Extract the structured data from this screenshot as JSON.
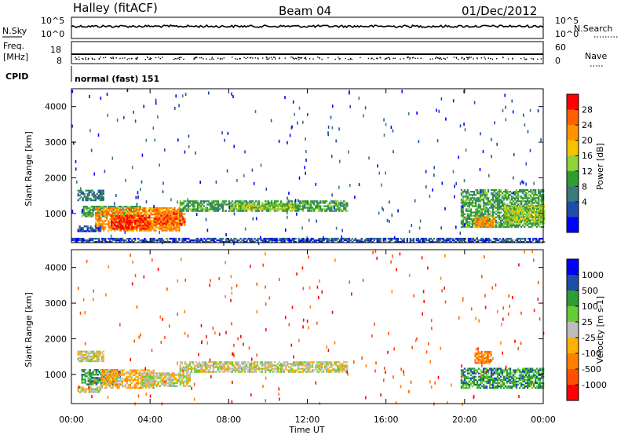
{
  "header": {
    "station": "Halley (fitACF)",
    "beam": "Beam 04",
    "date": "01/Dec/2012"
  },
  "panels": {
    "nsky_label": "N.Sky",
    "nsky_ticks": [
      "10^5",
      "10^0"
    ],
    "nsearch_label": "N.Search",
    "nsearch_ticks": [
      "10^5",
      "10^0"
    ],
    "freq_label_1": "Freq.",
    "freq_label_2": "[MHz]",
    "freq_ticks": [
      "18",
      "8"
    ],
    "nave_label": "Nave",
    "nave_ticks": [
      "60",
      "0"
    ],
    "cpid_label": "CPID",
    "cpid_text": "normal (fast) 151"
  },
  "chart_data": [
    {
      "type": "heatmap",
      "panel": "power",
      "ylabel": "Slant Range [km]",
      "xlabel": "Time UT",
      "ylim": [
        180,
        4500
      ],
      "y_ticks": [
        1000,
        2000,
        3000,
        4000
      ],
      "x_ticks": [
        "00:00",
        "04:00",
        "08:00",
        "12:00",
        "16:00",
        "20:00",
        "00:00"
      ],
      "x_hours": [
        0,
        4,
        8,
        12,
        16,
        20,
        24
      ],
      "colorbar_label": "Power [dB]",
      "colorbar_ticks": [
        "28",
        "24",
        "20",
        "16",
        "12",
        "8",
        "4"
      ],
      "colorbar_colors": [
        "#ff0000",
        "#ff6000",
        "#ff9400",
        "#f6c200",
        "#8fd23a",
        "#2e9e33",
        "#3b7a7a",
        "#1f4ea8",
        "#0000ff"
      ],
      "regions": [
        {
          "t0": 0.3,
          "t1": 1.6,
          "r0": 1350,
          "r1": 1650,
          "level": 2
        },
        {
          "t0": 0.5,
          "t1": 3.5,
          "r0": 900,
          "r1": 1200,
          "level": 3
        },
        {
          "t0": 1.2,
          "t1": 5.5,
          "r0": 500,
          "r1": 1150,
          "level": 6
        },
        {
          "t0": 2.0,
          "t1": 4.0,
          "r0": 550,
          "r1": 950,
          "level": 8
        },
        {
          "t0": 4.2,
          "t1": 5.8,
          "r0": 650,
          "r1": 1050,
          "level": 7
        },
        {
          "t0": 5.5,
          "t1": 14.0,
          "r0": 1050,
          "r1": 1350,
          "level": 3
        },
        {
          "t0": 8.0,
          "t1": 11.5,
          "r0": 1100,
          "r1": 1250,
          "level": 4
        },
        {
          "t0": 0.3,
          "t1": 1.5,
          "r0": 480,
          "r1": 620,
          "level": 1
        },
        {
          "t0": 19.8,
          "t1": 24.0,
          "r0": 600,
          "r1": 1650,
          "level": 3
        },
        {
          "t0": 20.5,
          "t1": 21.5,
          "r0": 600,
          "r1": 900,
          "level": 6
        },
        {
          "t0": 22.0,
          "t1": 24.0,
          "r0": 700,
          "r1": 1200,
          "level": 4
        },
        {
          "t0": 0.0,
          "t1": 24.0,
          "r0": 180,
          "r1": 300,
          "level": 1
        }
      ]
    },
    {
      "type": "heatmap",
      "panel": "velocity",
      "ylabel": "Slant Range [km]",
      "xlabel": "Time UT",
      "ylim": [
        180,
        4500
      ],
      "y_ticks": [
        1000,
        2000,
        3000,
        4000
      ],
      "x_ticks": [
        "00:00",
        "04:00",
        "08:00",
        "12:00",
        "16:00",
        "20:00",
        "00:00"
      ],
      "x_hours": [
        0,
        4,
        8,
        12,
        16,
        20,
        24
      ],
      "colorbar_label": "Velocity [m s-1]",
      "colorbar_ticks": [
        "1000",
        "500",
        "100",
        "25",
        "-25",
        "-100",
        "-500",
        "-1000"
      ],
      "colorbar_colors": [
        "#0000ff",
        "#1f4ea8",
        "#2e9e33",
        "#66cc33",
        "#bdbdbd",
        "#ffb000",
        "#ff8000",
        "#ff5000",
        "#ff0000"
      ],
      "regions": [
        {
          "t0": 0.3,
          "t1": 1.6,
          "r0": 1350,
          "r1": 1650,
          "level": 4
        },
        {
          "t0": 0.5,
          "t1": 2.5,
          "r0": 700,
          "r1": 1150,
          "level": 6
        },
        {
          "t0": 1.5,
          "t1": 4.2,
          "r0": 600,
          "r1": 1100,
          "level": 3
        },
        {
          "t0": 3.5,
          "t1": 6.0,
          "r0": 650,
          "r1": 1050,
          "level": 4
        },
        {
          "t0": 5.5,
          "t1": 14.0,
          "r0": 1050,
          "r1": 1350,
          "level": 4
        },
        {
          "t0": 19.8,
          "t1": 24.0,
          "r0": 600,
          "r1": 1150,
          "level": 6
        },
        {
          "t0": 20.5,
          "t1": 21.3,
          "r0": 1300,
          "r1": 1650,
          "level": 2
        },
        {
          "t0": 0.3,
          "t1": 1.5,
          "r0": 480,
          "r1": 620,
          "level": 4
        }
      ]
    }
  ]
}
